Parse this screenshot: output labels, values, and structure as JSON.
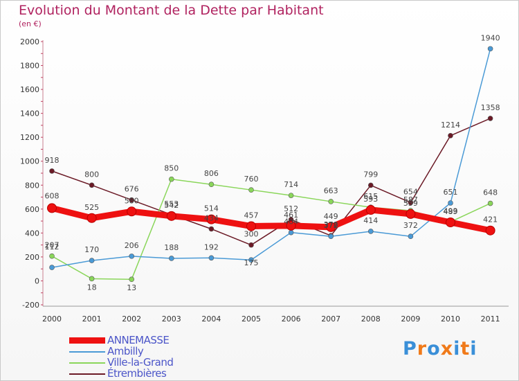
{
  "title": "Evolution du Montant de la Dette par Habitant",
  "subtitle": "(en €)",
  "logo_text": "Proxiti",
  "chart_data": {
    "type": "line",
    "x": [
      "2000",
      "2001",
      "2002",
      "2003",
      "2004",
      "2005",
      "2006",
      "2007",
      "2008",
      "2009",
      "2010",
      "2011"
    ],
    "ylim": [
      -200,
      2000
    ],
    "yticks": [
      -200,
      0,
      200,
      400,
      600,
      800,
      1000,
      1200,
      1400,
      1600,
      1800,
      2000
    ],
    "grid": false,
    "legend_position": "bottom-left",
    "series": [
      {
        "name": "ANNEMASSE",
        "color": "#ee1111",
        "values": [
          608,
          525,
          580,
          542,
          514,
          457,
          461,
          449,
          593,
          559,
          489,
          421
        ]
      },
      {
        "name": "Ambilly",
        "color": "#4a9ad6",
        "values": [
          112,
          170,
          206,
          188,
          192,
          175,
          404,
          372,
          414,
          372,
          651,
          1940
        ]
      },
      {
        "name": "Ville-la-Grand",
        "color": "#8ad65a",
        "values": [
          207,
          18,
          13,
          850,
          806,
          760,
          714,
          663,
          615,
          587,
          493,
          648
        ]
      },
      {
        "name": "Étrembières",
        "color": "#6b1a26",
        "values": [
          918,
          800,
          676,
          553,
          434,
          300,
          512,
          378,
          799,
          654,
          1214,
          1358
        ]
      }
    ],
    "data_labels": [
      {
        "series": 0,
        "values": [
          "608",
          "525",
          "580",
          "542",
          "514",
          "457",
          "461",
          "449",
          "593",
          "559",
          "489",
          "421"
        ]
      },
      {
        "series": 1,
        "values": [
          "112",
          "170",
          "206",
          "188",
          "192",
          "175",
          "404",
          "372",
          "414",
          "372",
          "651",
          "1940"
        ]
      },
      {
        "series": 2,
        "values": [
          "207",
          "18",
          "13",
          "850",
          "806",
          "760",
          "714",
          "663",
          "615",
          "587",
          "493",
          "648"
        ]
      },
      {
        "series": 3,
        "values": [
          "918",
          "800",
          "676",
          "553",
          "434",
          "300",
          "512",
          "378",
          "799",
          "654",
          "1214",
          "1358"
        ]
      }
    ]
  }
}
